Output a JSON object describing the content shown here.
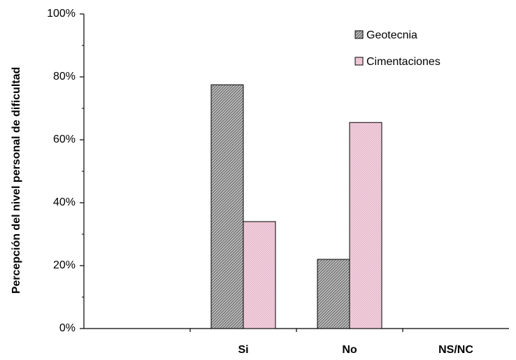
{
  "chart_data": {
    "type": "bar",
    "categories": [
      "",
      "Si",
      "No",
      "NS/NC"
    ],
    "series": [
      {
        "name": "Geotecnia",
        "values": [
          null,
          77.5,
          22.0,
          null
        ],
        "color": "#a8a8a8",
        "pattern": "diagonal-hatch"
      },
      {
        "name": "Cimentaciones",
        "values": [
          null,
          34.0,
          65.5,
          null
        ],
        "color": "#f2c4d6",
        "pattern": "fine-hatch"
      }
    ],
    "ylabel": "Percepción del nivel personal de dificultad",
    "xlabel": "",
    "ylim": [
      0,
      100
    ],
    "yticks": [
      "0%",
      "20%",
      "40%",
      "60%",
      "80%",
      "100%"
    ],
    "grid": false,
    "legend_position": "top-right"
  }
}
